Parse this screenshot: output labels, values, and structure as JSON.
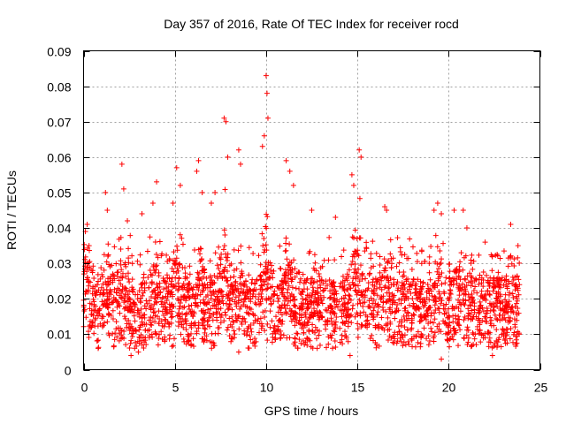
{
  "chart_data": {
    "type": "scatter",
    "title": "Day 357 of 2016, Rate Of TEC Index for receiver rocd",
    "xlabel": "GPS time / hours",
    "ylabel": "ROTI / TECUs",
    "xlim": [
      0,
      25
    ],
    "ylim": [
      0,
      0.09
    ],
    "xticks": [
      "0",
      "5",
      "10",
      "15",
      "20",
      "25"
    ],
    "yticks": [
      "0",
      "0.01",
      "0.02",
      "0.03",
      "0.04",
      "0.05",
      "0.06",
      "0.07",
      "0.08",
      "0.09"
    ],
    "grid": true,
    "marker": "+",
    "color": "#ff0000",
    "series": [
      {
        "name": "ROTI",
        "note": "dense cloud of ~2500 points between 0 and 23.9 h; representative extreme points listed",
        "points": [
          [
            0.1,
            0.039
          ],
          [
            0.2,
            0.041
          ],
          [
            0.3,
            0.035
          ],
          [
            0.5,
            0.028
          ],
          [
            1.2,
            0.05
          ],
          [
            1.3,
            0.045
          ],
          [
            2.1,
            0.058
          ],
          [
            2.2,
            0.051
          ],
          [
            2.4,
            0.042
          ],
          [
            3.2,
            0.044
          ],
          [
            3.8,
            0.047
          ],
          [
            4.0,
            0.053
          ],
          [
            4.9,
            0.047
          ],
          [
            5.1,
            0.057
          ],
          [
            5.3,
            0.052
          ],
          [
            6.2,
            0.056
          ],
          [
            6.3,
            0.059
          ],
          [
            6.5,
            0.05
          ],
          [
            7.0,
            0.047
          ],
          [
            7.2,
            0.05
          ],
          [
            7.7,
            0.071
          ],
          [
            7.8,
            0.07
          ],
          [
            7.9,
            0.06
          ],
          [
            8.5,
            0.062
          ],
          [
            8.6,
            0.058
          ],
          [
            9.8,
            0.063
          ],
          [
            9.9,
            0.066
          ],
          [
            10.0,
            0.083
          ],
          [
            10.05,
            0.078
          ],
          [
            10.1,
            0.071
          ],
          [
            11.1,
            0.059
          ],
          [
            11.3,
            0.056
          ],
          [
            11.5,
            0.052
          ],
          [
            12.5,
            0.045
          ],
          [
            13.8,
            0.043
          ],
          [
            14.7,
            0.055
          ],
          [
            14.8,
            0.052
          ],
          [
            15.1,
            0.062
          ],
          [
            15.2,
            0.06
          ],
          [
            16.5,
            0.046
          ],
          [
            16.6,
            0.045
          ],
          [
            19.2,
            0.045
          ],
          [
            19.4,
            0.047
          ],
          [
            19.6,
            0.044
          ],
          [
            20.3,
            0.045
          ],
          [
            20.8,
            0.045
          ],
          [
            21.0,
            0.04
          ],
          [
            22.0,
            0.036
          ],
          [
            23.4,
            0.041
          ],
          [
            23.8,
            0.035
          ],
          [
            19.6,
            0.003
          ],
          [
            2.6,
            0.004
          ],
          [
            14.6,
            0.004
          ],
          [
            22.4,
            0.004
          ],
          [
            8.5,
            0.005
          ],
          [
            3.0,
            0.005
          ],
          [
            0.8,
            0.006
          ]
        ]
      }
    ]
  }
}
